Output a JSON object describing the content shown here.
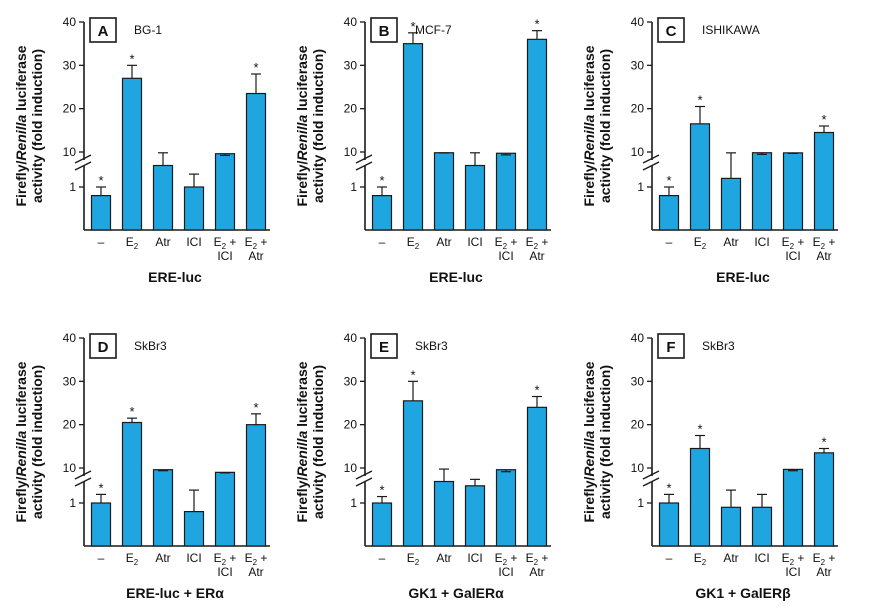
{
  "y_axis_label": {
    "prefix": "Firefly/",
    "italic": "Renilla",
    "suffix": " luciferase",
    "line2": "activity (fold induction)"
  },
  "colors": {
    "bar": "#1fa6e0",
    "stroke": "#1a1a1a"
  },
  "chart_data": [
    {
      "type": "bar",
      "panel": "A",
      "cell_line": "BG-1",
      "xlabel": "ERE-luc",
      "categories": [
        "–",
        "E2",
        "Atr",
        "ICI",
        "E2 + ICI",
        "E2 + Atr"
      ],
      "values": [
        0.8,
        27,
        1.5,
        1.0,
        3.5,
        23.5
      ],
      "errors": [
        0.2,
        3.0,
        0.6,
        0.3,
        2.5,
        4.5
      ],
      "significant": [
        true,
        true,
        false,
        false,
        false,
        true
      ],
      "yticks": [
        1,
        10,
        20,
        30,
        40
      ],
      "ylim": [
        0,
        40
      ],
      "axis_break": true
    },
    {
      "type": "bar",
      "panel": "B",
      "cell_line": "MCF-7",
      "xlabel": "ERE-luc",
      "categories": [
        "–",
        "E2",
        "Atr",
        "ICI",
        "E2 + ICI",
        "E2 + Atr"
      ],
      "values": [
        0.8,
        35,
        2.0,
        1.5,
        2.8,
        36
      ],
      "errors": [
        0.2,
        2.5,
        0.3,
        0.6,
        2.5,
        2.0
      ],
      "significant": [
        true,
        true,
        false,
        false,
        false,
        true
      ],
      "yticks": [
        1,
        10,
        20,
        30,
        40
      ],
      "ylim": [
        0,
        40
      ],
      "axis_break": true
    },
    {
      "type": "bar",
      "panel": "C",
      "cell_line": "ISHIKAWA",
      "xlabel": "ERE-luc",
      "categories": [
        "–",
        "E2",
        "Atr",
        "ICI",
        "E2 + ICI",
        "E2 + Atr"
      ],
      "values": [
        0.8,
        16.5,
        1.2,
        2.0,
        2.2,
        14.5
      ],
      "errors": [
        0.2,
        4.0,
        1.0,
        2.5,
        0.8,
        1.5
      ],
      "significant": [
        true,
        true,
        false,
        false,
        false,
        true
      ],
      "yticks": [
        1,
        10,
        20,
        30,
        40
      ],
      "ylim": [
        0,
        40
      ],
      "axis_break": true
    },
    {
      "type": "bar",
      "panel": "D",
      "cell_line": "SkBr3",
      "xlabel": "ERE-luc + ERα",
      "categories": [
        "–",
        "E2",
        "Atr",
        "ICI",
        "E2 + ICI",
        "E2 + Atr"
      ],
      "values": [
        1.0,
        20.5,
        3.5,
        0.8,
        7.5,
        20
      ],
      "errors": [
        0.2,
        1.0,
        1.5,
        0.5,
        0.8,
        2.5
      ],
      "significant": [
        true,
        true,
        false,
        false,
        false,
        true
      ],
      "yticks": [
        1,
        10,
        20,
        30,
        40
      ],
      "ylim": [
        0,
        40
      ],
      "axis_break": true
    },
    {
      "type": "bar",
      "panel": "E",
      "cell_line": "SkBr3",
      "xlabel": "GK1 + GalERα",
      "categories": [
        "–",
        "E2",
        "Atr",
        "ICI",
        "E2 + ICI",
        "E2 + Atr"
      ],
      "values": [
        1.0,
        25.5,
        1.5,
        1.4,
        3.5,
        24
      ],
      "errors": [
        0.15,
        4.5,
        1.0,
        0.15,
        3.0,
        2.5
      ],
      "significant": [
        true,
        true,
        false,
        false,
        false,
        true
      ],
      "yticks": [
        1,
        10,
        20,
        30,
        40
      ],
      "ylim": [
        0,
        40
      ],
      "axis_break": true
    },
    {
      "type": "bar",
      "panel": "F",
      "cell_line": "SkBr3",
      "xlabel": "GK1 + GalERβ",
      "categories": [
        "–",
        "E2",
        "Atr",
        "ICI",
        "E2 + ICI",
        "E2 + Atr"
      ],
      "values": [
        1.0,
        14.5,
        0.9,
        0.9,
        3.0,
        13.5
      ],
      "errors": [
        0.2,
        3.0,
        0.4,
        0.3,
        2.0,
        1.0
      ],
      "significant": [
        true,
        true,
        false,
        false,
        false,
        true
      ],
      "yticks": [
        1,
        10,
        20,
        30,
        40
      ],
      "ylim": [
        0,
        40
      ],
      "axis_break": true
    }
  ]
}
